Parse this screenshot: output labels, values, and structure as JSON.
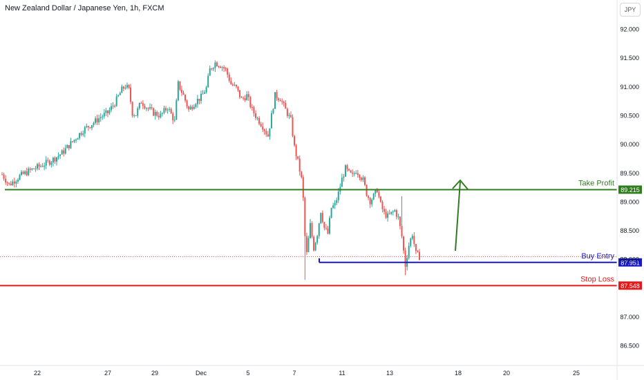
{
  "header": {
    "title": "New Zealand Dollar / Japanese Yen, 1h, FXCM",
    "currency_button": "JPY"
  },
  "chart_data": {
    "type": "candlestick",
    "title": "New Zealand Dollar / Japanese Yen, 1h, FXCM",
    "y_ticks": [
      "92.000",
      "91.500",
      "91.000",
      "90.500",
      "90.000",
      "89.500",
      "89.000",
      "88.500",
      "88.000",
      "87.000",
      "86.500"
    ],
    "x_ticks": [
      "22",
      "27",
      "29",
      "Dec",
      "5",
      "7",
      "11",
      "13",
      "18",
      "20",
      "25"
    ],
    "ylim": [
      86.3,
      92.3
    ],
    "colors": {
      "up": "#26a69a",
      "down": "#ef5350"
    },
    "price_path": [
      [
        0,
        89.48
      ],
      [
        4,
        89.3
      ],
      [
        10,
        89.45
      ],
      [
        16,
        89.55
      ],
      [
        22,
        89.63
      ],
      [
        28,
        89.72
      ],
      [
        34,
        89.85
      ],
      [
        40,
        90.05
      ],
      [
        46,
        90.25
      ],
      [
        52,
        90.38
      ],
      [
        56,
        90.48
      ],
      [
        60,
        90.55
      ],
      [
        64,
        90.72
      ],
      [
        68,
        90.95
      ],
      [
        70,
        91.02
      ],
      [
        72,
        90.95
      ],
      [
        74,
        90.55
      ],
      [
        76,
        90.52
      ],
      [
        79,
        90.75
      ],
      [
        82,
        90.65
      ],
      [
        86,
        90.55
      ],
      [
        90,
        90.5
      ],
      [
        94,
        90.65
      ],
      [
        98,
        90.4
      ],
      [
        100,
        91.05
      ],
      [
        103,
        90.85
      ],
      [
        106,
        90.6
      ],
      [
        110,
        90.75
      ],
      [
        113,
        90.82
      ],
      [
        116,
        90.98
      ],
      [
        118,
        91.3
      ],
      [
        121,
        91.42
      ],
      [
        124,
        91.38
      ],
      [
        127,
        91.3
      ],
      [
        130,
        91.05
      ],
      [
        133,
        90.98
      ],
      [
        136,
        90.78
      ],
      [
        139,
        90.85
      ],
      [
        142,
        90.6
      ],
      [
        145,
        90.45
      ],
      [
        148,
        90.32
      ],
      [
        151,
        90.15
      ],
      [
        155,
        90.85
      ],
      [
        158,
        90.8
      ],
      [
        161,
        90.6
      ],
      [
        164,
        90.42
      ],
      [
        166,
        89.95
      ],
      [
        168,
        89.7
      ],
      [
        170,
        89.4
      ],
      [
        171,
        89.05
      ],
      [
        172,
        88.4
      ],
      [
        173,
        88.1
      ],
      [
        175,
        88.6
      ],
      [
        177,
        88.2
      ],
      [
        179,
        88.45
      ],
      [
        181,
        88.85
      ],
      [
        183,
        88.55
      ],
      [
        185,
        88.45
      ],
      [
        187,
        88.9
      ],
      [
        189,
        88.95
      ],
      [
        191,
        89.15
      ],
      [
        193,
        89.4
      ],
      [
        195,
        89.58
      ],
      [
        197,
        89.5
      ],
      [
        199,
        89.45
      ],
      [
        201,
        89.55
      ],
      [
        203,
        89.48
      ],
      [
        205,
        89.38
      ],
      [
        207,
        89.15
      ],
      [
        209,
        89.02
      ],
      [
        211,
        89.1
      ],
      [
        213,
        89.22
      ],
      [
        215,
        88.95
      ],
      [
        217,
        88.8
      ],
      [
        219,
        88.75
      ],
      [
        221,
        88.8
      ],
      [
        223,
        88.85
      ],
      [
        225,
        88.72
      ],
      [
        227,
        88.4
      ],
      [
        229,
        87.9
      ],
      [
        231,
        88.25
      ],
      [
        233,
        88.45
      ],
      [
        235,
        88.1
      ],
      [
        237,
        88.05
      ]
    ],
    "levels": [
      {
        "name": "Take Profit",
        "value": "89.215",
        "price": 89.215,
        "color": "#2f7d1f"
      },
      {
        "name": "Buy Entry",
        "value": "87.951",
        "price": 87.951,
        "color": "#1818c8"
      },
      {
        "name": "Stop Loss",
        "value": "87.548",
        "price": 87.548,
        "color": "#e51919"
      }
    ],
    "current_price": 88.05,
    "arrow": {
      "direction": "up",
      "color": "#2f7d1f"
    }
  }
}
